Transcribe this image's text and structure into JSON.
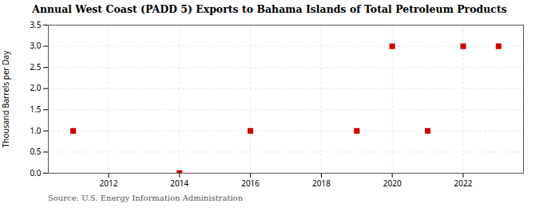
{
  "chart_data": {
    "type": "scatter",
    "title": "Annual West Coast (PADD 5) Exports to Bahama Islands of Total Petroleum Products",
    "ylabel": "Thousand Barrels per Day",
    "annotations": [
      "Source: U.S. Energy Information Administration"
    ],
    "x": [
      2011,
      2014,
      2016,
      2019,
      2020,
      2021,
      2022,
      2023
    ],
    "values": [
      1.0,
      0.003,
      1.0,
      1.0,
      3.0,
      1.0,
      3.0,
      3.0
    ],
    "color": "#cc0000",
    "marker": "square",
    "xlim": [
      2010.3,
      2023.7
    ],
    "ylim": [
      0.0,
      3.5
    ],
    "xticks": [
      2012,
      2014,
      2016,
      2018,
      2020,
      2022
    ],
    "yticks": [
      {
        "value": 0.0,
        "label": "0.0"
      },
      0.5,
      {
        "value": 1.0,
        "label": "1.0"
      },
      1.5,
      {
        "value": 2.0,
        "label": "2.0"
      },
      2.5,
      {
        "value": 3.0,
        "label": "3.0"
      },
      3.5
    ],
    "grid": true
  }
}
